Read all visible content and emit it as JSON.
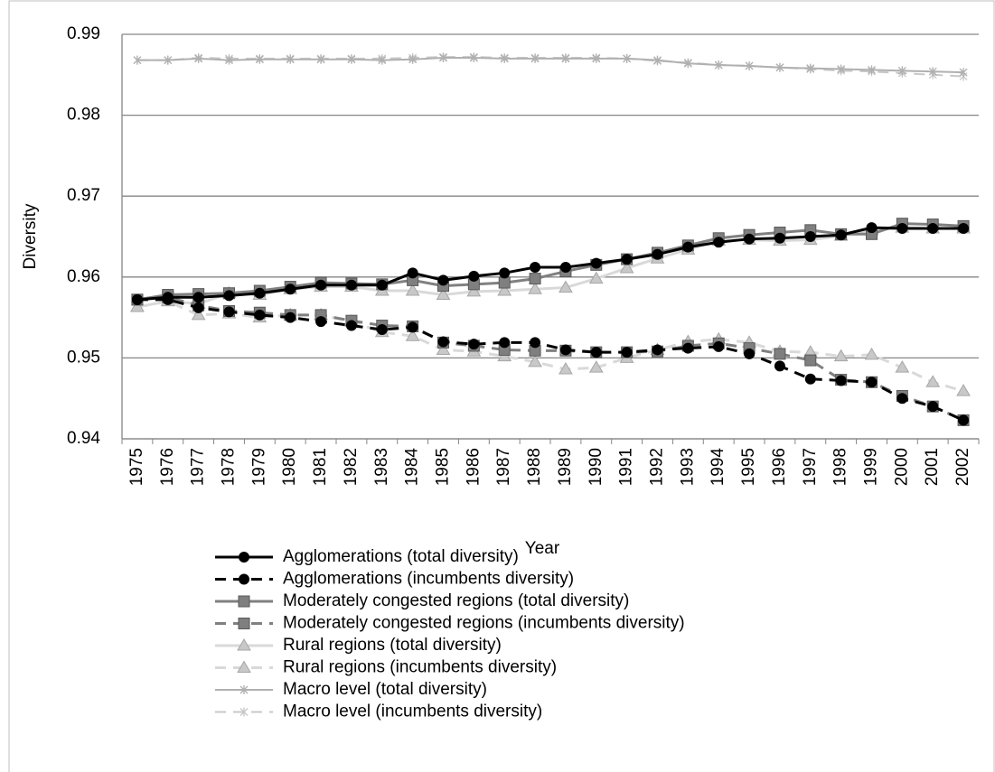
{
  "chart_data": {
    "type": "line",
    "x_label": "Year",
    "y_label": "Diversity",
    "categories": [
      "1975",
      "1976",
      "1977",
      "1978",
      "1979",
      "1980",
      "1981",
      "1982",
      "1983",
      "1984",
      "1985",
      "1986",
      "1987",
      "1988",
      "1989",
      "1990",
      "1991",
      "1992",
      "1993",
      "1994",
      "1995",
      "1996",
      "1997",
      "1998",
      "1999",
      "2000",
      "2001",
      "2002"
    ],
    "ylim": [
      0.94,
      0.99
    ],
    "yticks": [
      0.94,
      0.95,
      0.96,
      0.97,
      0.98,
      0.99
    ],
    "grid": true,
    "series": [
      {
        "name": "Agglomerations (total diversity)",
        "color": "#000000",
        "dashed": false,
        "marker": "circle",
        "values": [
          0.9572,
          0.9575,
          0.9575,
          0.9577,
          0.958,
          0.9585,
          0.959,
          0.959,
          0.959,
          0.9605,
          0.9596,
          0.9601,
          0.9605,
          0.9612,
          0.9612,
          0.9617,
          0.9622,
          0.9628,
          0.9637,
          0.9643,
          0.9647,
          0.9648,
          0.965,
          0.9652,
          0.9661,
          0.966,
          0.966,
          0.966
        ]
      },
      {
        "name": "Agglomerations (incumbents diversity)",
        "color": "#000000",
        "dashed": true,
        "marker": "circle",
        "values": [
          0.9572,
          0.9572,
          0.9562,
          0.9557,
          0.9553,
          0.955,
          0.9545,
          0.954,
          0.9535,
          0.9538,
          0.952,
          0.9517,
          0.9519,
          0.9519,
          0.951,
          0.9507,
          0.9507,
          0.951,
          0.9512,
          0.9514,
          0.9505,
          0.949,
          0.9474,
          0.9472,
          0.947,
          0.945,
          0.944,
          0.9423
        ]
      },
      {
        "name": "Moderately congested regions (total diversity)",
        "color": "#808080",
        "dashed": false,
        "marker": "square",
        "values": [
          0.9572,
          0.9578,
          0.9579,
          0.958,
          0.9583,
          0.9588,
          0.9593,
          0.9592,
          0.9591,
          0.9596,
          0.9589,
          0.9591,
          0.9593,
          0.9598,
          0.9607,
          0.9615,
          0.9622,
          0.963,
          0.9639,
          0.9648,
          0.9652,
          0.9655,
          0.9658,
          0.9653,
          0.9653,
          0.9666,
          0.9665,
          0.9663
        ]
      },
      {
        "name": "Moderately congested regions (incumbents diversity)",
        "color": "#808080",
        "dashed": true,
        "marker": "square",
        "values": [
          0.9572,
          0.9575,
          0.9565,
          0.9558,
          0.9556,
          0.9553,
          0.9553,
          0.9546,
          0.954,
          0.9539,
          0.9519,
          0.9515,
          0.951,
          0.9509,
          0.9509,
          0.9507,
          0.9507,
          0.9508,
          0.9515,
          0.9518,
          0.9512,
          0.9505,
          0.9497,
          0.9473,
          0.947,
          0.9453,
          0.944,
          0.9423
        ]
      },
      {
        "name": "Rural regions (total diversity)",
        "color": "#d9d9d9",
        "dashed": false,
        "marker": "triangle",
        "values": [
          0.9563,
          0.957,
          0.9567,
          0.958,
          0.9578,
          0.9585,
          0.9588,
          0.9588,
          0.9583,
          0.9583,
          0.9578,
          0.9582,
          0.9583,
          0.9585,
          0.9587,
          0.9598,
          0.9611,
          0.9623,
          0.9634,
          0.9645,
          0.9646,
          0.9645,
          0.9646,
          0.9651,
          0.9658,
          0.9661,
          0.966,
          0.966
        ]
      },
      {
        "name": "Rural regions (incumbents diversity)",
        "color": "#d9d9d9",
        "dashed": true,
        "marker": "triangle",
        "values": [
          0.9563,
          0.957,
          0.9553,
          0.9555,
          0.955,
          0.9553,
          0.9553,
          0.9545,
          0.9532,
          0.9527,
          0.951,
          0.9508,
          0.9502,
          0.9495,
          0.9486,
          0.9488,
          0.95,
          0.951,
          0.952,
          0.9523,
          0.9519,
          0.9508,
          0.9507,
          0.9502,
          0.9504,
          0.9488,
          0.947,
          0.9459
        ]
      },
      {
        "name": "Macro level (total diversity)",
        "color": "#b0b0b0",
        "dashed": false,
        "marker": "x",
        "values": [
          0.9868,
          0.9868,
          0.987,
          0.9868,
          0.9869,
          0.9869,
          0.9869,
          0.9869,
          0.9868,
          0.9869,
          0.9871,
          0.9871,
          0.987,
          0.987,
          0.987,
          0.987,
          0.987,
          0.9868,
          0.9864,
          0.9862,
          0.9861,
          0.9859,
          0.9858,
          0.9857,
          0.9856,
          0.9855,
          0.9854,
          0.9853
        ]
      },
      {
        "name": "Macro level (incumbents diversity)",
        "color": "#c8c8c8",
        "dashed": true,
        "marker": "x",
        "values": [
          0.9868,
          0.9868,
          0.9871,
          0.987,
          0.987,
          0.987,
          0.987,
          0.987,
          0.987,
          0.9871,
          0.9872,
          0.9872,
          0.9871,
          0.9871,
          0.9871,
          0.9871,
          0.987,
          0.9867,
          0.9865,
          0.9862,
          0.9861,
          0.9859,
          0.9857,
          0.9855,
          0.9854,
          0.9852,
          0.985,
          0.9848
        ]
      }
    ]
  }
}
